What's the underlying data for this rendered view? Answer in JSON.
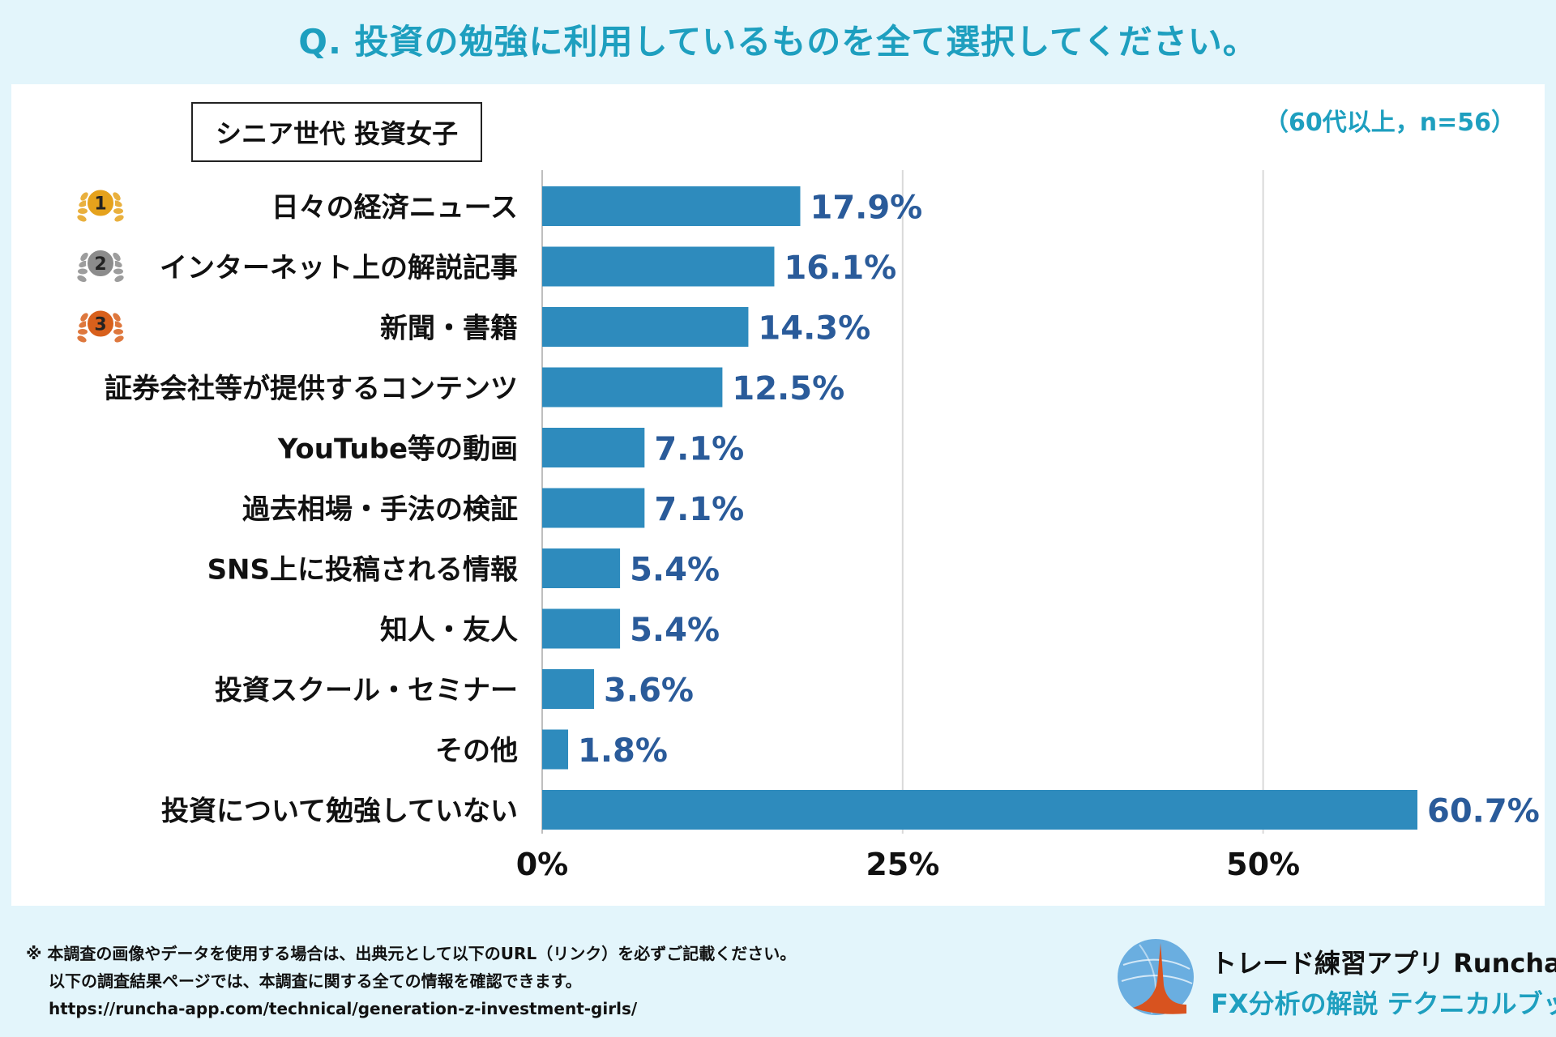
{
  "question": "Q. 投資の勉強に利用しているものを全て選択してください。",
  "group_label": "シニア世代 投資女子",
  "sample_note": "（60代以上，n=56）",
  "chart_data": {
    "type": "bar",
    "orientation": "horizontal",
    "categories": [
      "日々の経済ニュース",
      "インターネット上の解説記事",
      "新聞・書籍",
      "証券会社等が提供するコンテンツ",
      "YouTube等の動画",
      "過去相場・手法の検証",
      "SNS上に投稿される情報",
      "知人・友人",
      "投資スクール・セミナー",
      "その他",
      "投資について勉強していない"
    ],
    "values": [
      17.9,
      16.1,
      14.3,
      12.5,
      7.1,
      7.1,
      5.4,
      5.4,
      3.6,
      1.8,
      60.7
    ],
    "value_labels": [
      "17.9%",
      "16.1%",
      "14.3%",
      "12.5%",
      "7.1%",
      "7.1%",
      "5.4%",
      "5.4%",
      "3.6%",
      "1.8%",
      "60.7%"
    ],
    "ranks": [
      "1",
      "2",
      "3"
    ],
    "xlim": [
      0,
      60.7
    ],
    "xticks": [
      0,
      25,
      50
    ],
    "xtick_labels": [
      "0%",
      "25%",
      "50%"
    ],
    "grid": true,
    "bar_color": "#2e8bbd",
    "label_color": "#2a5b9a",
    "rank_colors": [
      "#e5a21c",
      "#8c8c8c",
      "#d8601c"
    ]
  },
  "footer": {
    "line1": "※ 本調査の画像やデータを使用する場合は、出典元として以下のURL（リンク）を必ずご記載ください。",
    "line2": "以下の調査結果ページでは、本調査に関する全ての情報を確認できます。",
    "line3": "https://runcha-app.com/technical/generation-z-investment-girls/"
  },
  "brand": {
    "name": "トレード練習アプリ Runcha",
    "sub": "FX分析の解説 テクニカルブック"
  },
  "colors": {
    "accent": "#1e9fbf",
    "background": "#e3f5fb"
  }
}
